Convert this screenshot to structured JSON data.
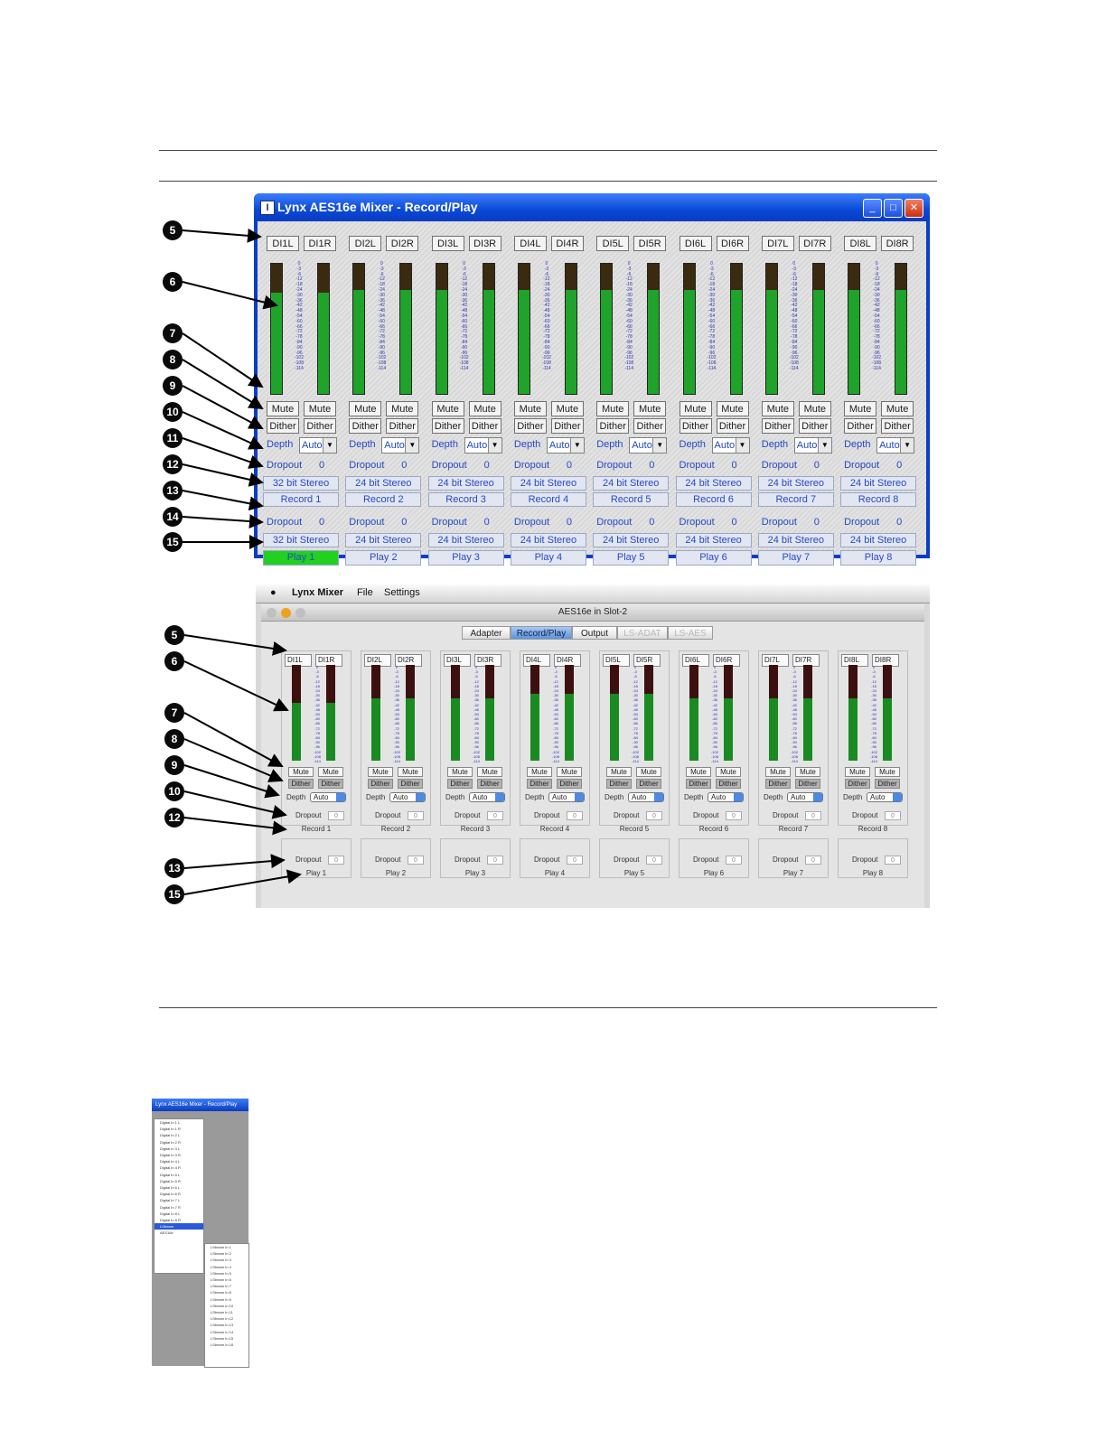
{
  "win_mixer": {
    "title": "Lynx AES16e Mixer - Record/Play",
    "channels": [
      {
        "in_l": "DI1L",
        "in_r": "DI1R",
        "format": "32 bit Stereo",
        "record": "Record 1",
        "play": "Play 1",
        "play_active": true
      },
      {
        "in_l": "DI2L",
        "in_r": "DI2R",
        "format": "24 bit Stereo",
        "record": "Record 2",
        "play": "Play 2",
        "play_active": false
      },
      {
        "in_l": "DI3L",
        "in_r": "DI3R",
        "format": "24 bit Stereo",
        "record": "Record 3",
        "play": "Play 3",
        "play_active": false
      },
      {
        "in_l": "DI4L",
        "in_r": "DI4R",
        "format": "24 bit Stereo",
        "record": "Record 4",
        "play": "Play 4",
        "play_active": false
      },
      {
        "in_l": "DI5L",
        "in_r": "DI5R",
        "format": "24 bit Stereo",
        "record": "Record 5",
        "play": "Play 5",
        "play_active": false
      },
      {
        "in_l": "DI6L",
        "in_r": "DI6R",
        "format": "24 bit Stereo",
        "record": "Record 6",
        "play": "Play 6",
        "play_active": false
      },
      {
        "in_l": "DI7L",
        "in_r": "DI7R",
        "format": "24 bit Stereo",
        "record": "Record 7",
        "play": "Play 7",
        "play_active": false
      },
      {
        "in_l": "DI8L",
        "in_r": "DI8R",
        "format": "24 bit Stereo",
        "record": "Record 8",
        "play": "Play 8",
        "play_active": false
      }
    ],
    "mute_label": "Mute",
    "dither_label": "Dither",
    "depth_label": "Depth",
    "depth_value": "Auto",
    "dropout_label": "Dropout",
    "dropout_value": "0",
    "meter_scale": [
      "0",
      "-3",
      "-6",
      "-12",
      "-18",
      "-24",
      "-30",
      "-36",
      "-42",
      "-48",
      "-54",
      "-60",
      "-66",
      "-72",
      "-78",
      "-84",
      "-90",
      "-96",
      "-102",
      "-108",
      "-114"
    ],
    "colors": {
      "meter_fill": "#1fa32a",
      "active_play": "#22d020"
    }
  },
  "mac_mixer": {
    "menu": {
      "app": "Lynx Mixer",
      "file": "File",
      "settings": "Settings"
    },
    "window_title": "AES16e in Slot-2",
    "tabs": [
      {
        "label": "Adapter",
        "state": "normal"
      },
      {
        "label": "Record/Play",
        "state": "active"
      },
      {
        "label": "Output",
        "state": "normal"
      },
      {
        "label": "LS-ADAT",
        "state": "disabled"
      },
      {
        "label": "LS-AES",
        "state": "disabled"
      }
    ],
    "channels": [
      {
        "in_l": "DI1L",
        "in_r": "DI1R",
        "record": "Record 1",
        "play": "Play 1"
      },
      {
        "in_l": "DI2L",
        "in_r": "DI2R",
        "record": "Record 2",
        "play": "Play 2"
      },
      {
        "in_l": "DI3L",
        "in_r": "DI3R",
        "record": "Record 3",
        "play": "Play 3"
      },
      {
        "in_l": "DI4L",
        "in_r": "DI4R",
        "record": "Record 4",
        "play": "Play 4"
      },
      {
        "in_l": "DI5L",
        "in_r": "DI5R",
        "record": "Record 5",
        "play": "Play 5"
      },
      {
        "in_l": "DI6L",
        "in_r": "DI6R",
        "record": "Record 6",
        "play": "Play 6"
      },
      {
        "in_l": "DI7L",
        "in_r": "DI7R",
        "record": "Record 7",
        "play": "Play 7"
      },
      {
        "in_l": "DI8L",
        "in_r": "DI8R",
        "record": "Record 8",
        "play": "Play 8"
      }
    ],
    "mute_label": "Mute",
    "dither_label": "Dither",
    "depth_label": "Depth",
    "depth_value": "Auto",
    "dropout_label": "Dropout",
    "dropout_value": "0"
  },
  "callouts_win": [
    "5",
    "6",
    "7",
    "8",
    "9",
    "10",
    "11",
    "12",
    "13",
    "14",
    "15"
  ],
  "callouts_mac": [
    "5",
    "6",
    "7",
    "8",
    "9",
    "10",
    "12",
    "13",
    "15"
  ],
  "small_shot": {
    "title": "Lynx AES16e Mixer - Record/Play",
    "list1": [
      "Digital In 1 L",
      "Digital In 1 R",
      "Digital In 2 L",
      "Digital In 2 R",
      "Digital In 3 L",
      "Digital In 3 R",
      "Digital In 4 L",
      "Digital In 4 R",
      "Digital In 5 L",
      "Digital In 5 R",
      "Digital In 6 L",
      "Digital In 6 R",
      "Digital In 7 L",
      "Digital In 7 R",
      "Digital In 8 L",
      "Digital In 8 R",
      "LStream",
      "AES16e"
    ],
    "list2": [
      "LStream In 1",
      "LStream In 2",
      "LStream In 3",
      "LStream In 4",
      "LStream In 5",
      "LStream In 6",
      "LStream In 7",
      "LStream In 8",
      "LStream In 9",
      "LStream In 10",
      "LStream In 11",
      "LStream In 12",
      "LStream In 13",
      "LStream In 14",
      "LStream In 15",
      "LStream In 16"
    ]
  }
}
